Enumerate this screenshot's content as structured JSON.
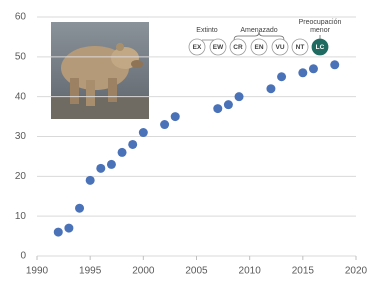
{
  "chart_data": {
    "type": "scatter",
    "x": [
      1992,
      1993,
      1994,
      1995,
      1996,
      1997,
      1998,
      1999,
      2000,
      2002,
      2003,
      2007,
      2008,
      2009,
      2012,
      2013,
      2015,
      2016,
      2018
    ],
    "values": [
      6,
      7,
      12,
      19,
      22,
      23,
      26,
      28,
      31,
      33,
      35,
      37,
      38,
      40,
      42,
      45,
      46,
      47,
      48
    ],
    "color": "#4a72b8",
    "xlim": [
      1990,
      2020
    ],
    "xticks": [
      1990,
      1995,
      2000,
      2005,
      2010,
      2015,
      2020
    ],
    "ylim": [
      0,
      60
    ],
    "yticks": [
      0,
      10,
      20,
      30,
      40,
      50,
      60
    ],
    "grid": true
  },
  "status_scale": {
    "extinct_label": "Extinto",
    "threatened_label": "Amenazado",
    "least_concern_lines": [
      "Preocupación",
      "menor"
    ],
    "codes": [
      "EX",
      "EW",
      "CR",
      "EN",
      "VU",
      "NT",
      "LC"
    ],
    "current": "LC"
  }
}
